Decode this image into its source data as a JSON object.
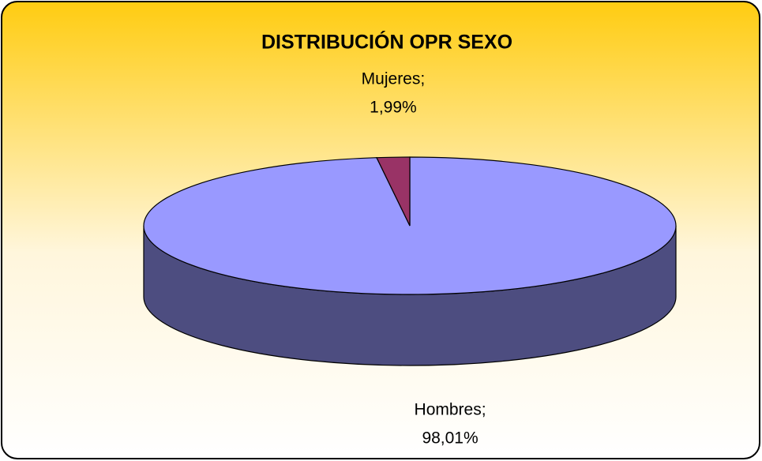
{
  "chart_data": {
    "type": "pie3d",
    "title": "DISTRIBUCIÓN OPR SEXO",
    "categories": [
      "Hombres;",
      "Mujeres;"
    ],
    "values": [
      98.01,
      1.99
    ],
    "value_labels": [
      "98,01%",
      "1,99%"
    ],
    "colors": [
      "#9999ff",
      "#993366"
    ]
  }
}
